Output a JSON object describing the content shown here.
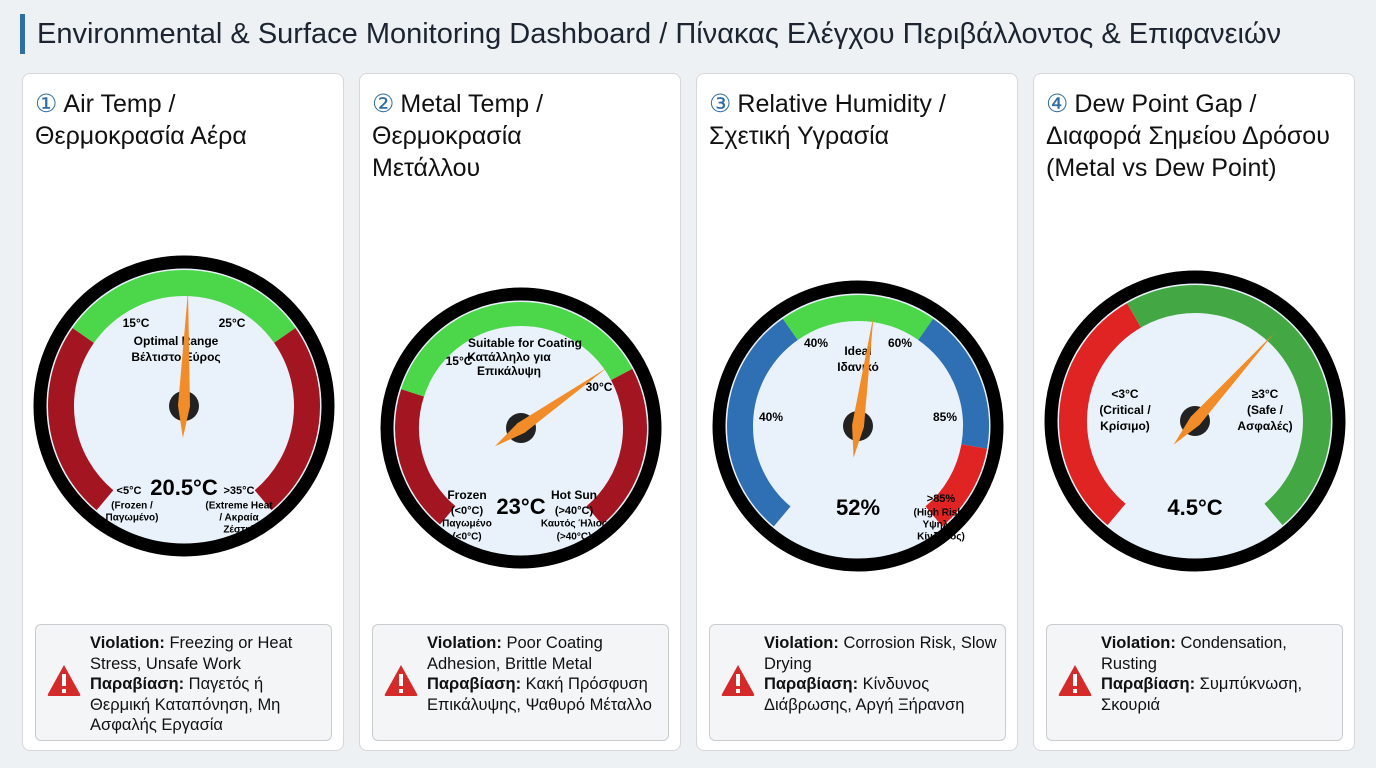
{
  "header": {
    "title": "Environmental & Surface Monitoring Dashboard / Πίνακας Ελέγχου Περιβάλλοντος & Επιφανειών"
  },
  "panels": [
    {
      "number": "①",
      "title": [
        "Air Temp /",
        "Θερμοκρασία Αέρα"
      ],
      "value_label": "20.5°C",
      "labels": [
        "15°C",
        "25°C",
        "Optimal Range",
        "Βέλτιστο Εύρος",
        "<5°C",
        "(Frozen /",
        "Παγωμένο)",
        ">35°C",
        "(Extreme Heat",
        "/ Ακραία",
        "Ζέστη)"
      ],
      "violation": {
        "en_label": "Violation:",
        "en": "Freezing or Heat Stress, Unsafe Work",
        "gr_label": "Παραβίαση:",
        "gr": "Παγετός ή Θερμική Καταπόνηση, Μη Ασφαλής Εργασία"
      }
    },
    {
      "number": "②",
      "title": [
        "Metal Temp /",
        "Θερμοκρασία",
        "Μετάλλου"
      ],
      "value_label": "23°C",
      "labels": [
        "Suitable for Coating",
        "Κατάλληλο για",
        "Επικάλυψη",
        "15°C",
        "30°C",
        "Frozen",
        "(<0°C)",
        "Παγωμένο",
        "(<0°C)",
        "Hot Sun",
        "(>40°C)",
        "Καυτός Ήλιος",
        "(>40°C)"
      ],
      "violation": {
        "en_label": "Violation:",
        "en": "Poor Coating Adhesion, Brittle Metal",
        "gr_label": "Παραβίαση:",
        "gr": "Κακή Πρόσφυση Επικάλυψης, Ψαθυρό Μέταλλο"
      }
    },
    {
      "number": "③",
      "title": [
        "Relative Humidity /",
        "Σχετική Υγρασία"
      ],
      "value_label": "52%",
      "labels": [
        "40%",
        "60%",
        "Ideal",
        "Ιδανικό",
        "40%",
        "85%",
        ">85%",
        "(High Risk /",
        "Υψηλός",
        "Κίνδυνος)"
      ],
      "violation": {
        "en_label": "Violation:",
        "en": "Corrosion Risk, Slow Drying",
        "gr_label": "Παραβίαση:",
        "gr": "Κίνδυνος Διάβρωσης, Αργή Ξήρανση"
      }
    },
    {
      "number": "④",
      "title": [
        "Dew Point Gap /",
        "Διαφορά Σημείου Δρόσου",
        "(Metal vs Dew Point)"
      ],
      "value_label": "4.5°C",
      "labels": [
        "<3°C",
        "(Critical /",
        "Κρίσιμο)",
        "≥3°C",
        "(Safe /",
        "Ασφαλές)"
      ],
      "violation": {
        "en_label": "Violation:",
        "en": "Condensation, Rusting",
        "gr_label": "Παραβίαση:",
        "gr": "Συμπύκνωση, Σκουριά"
      }
    }
  ]
}
